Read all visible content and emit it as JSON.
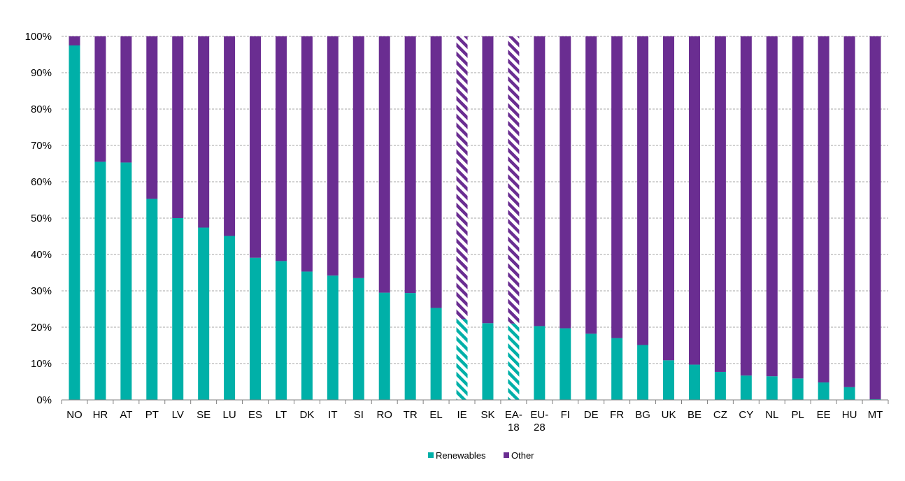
{
  "chart_data": {
    "type": "bar",
    "stacked": true,
    "title": "",
    "xlabel": "",
    "ylabel": "",
    "ylim": [
      0,
      100
    ],
    "yticks": [
      "0%",
      "10%",
      "20%",
      "30%",
      "40%",
      "50%",
      "60%",
      "70%",
      "80%",
      "90%",
      "100%"
    ],
    "grid": true,
    "legend_position": "bottom",
    "categories": [
      "NO",
      "HR",
      "AT",
      "PT",
      "LV",
      "SE",
      "LU",
      "ES",
      "LT",
      "DK",
      "IT",
      "SI",
      "RO",
      "TR",
      "EL",
      "IE",
      "SK",
      "EA-18",
      "EU-28",
      "FI",
      "DE",
      "FR",
      "BG",
      "UK",
      "BE",
      "CZ",
      "CY",
      "NL",
      "PL",
      "EE",
      "HU",
      "MT"
    ],
    "category_labels": [
      [
        "NO"
      ],
      [
        "HR"
      ],
      [
        "AT"
      ],
      [
        "PT"
      ],
      [
        "LV"
      ],
      [
        "SE"
      ],
      [
        "LU"
      ],
      [
        "ES"
      ],
      [
        "LT"
      ],
      [
        "DK"
      ],
      [
        "IT"
      ],
      [
        "SI"
      ],
      [
        "RO"
      ],
      [
        "TR"
      ],
      [
        "EL"
      ],
      [
        "IE"
      ],
      [
        "SK"
      ],
      [
        "EA-",
        "18"
      ],
      [
        "EU-",
        "28"
      ],
      [
        "FI"
      ],
      [
        "DE"
      ],
      [
        "FR"
      ],
      [
        "BG"
      ],
      [
        "UK"
      ],
      [
        "BE"
      ],
      [
        "CZ"
      ],
      [
        "CY"
      ],
      [
        "NL"
      ],
      [
        "PL"
      ],
      [
        "EE"
      ],
      [
        "HU"
      ],
      [
        "MT"
      ]
    ],
    "hatched_categories": [
      "IE",
      "EA-18"
    ],
    "series": [
      {
        "name": "Renewables",
        "color": "#00b0a8",
        "values": [
          97.5,
          65.5,
          65.3,
          55.3,
          50,
          47.4,
          45.1,
          39.1,
          38.2,
          35.3,
          34.2,
          33.5,
          29.5,
          29.4,
          25.3,
          22.2,
          21.1,
          21,
          20.3,
          19.7,
          18.2,
          17,
          15.1,
          10.9,
          9.7,
          7.7,
          6.7,
          6.5,
          5.9,
          4.8,
          3.5,
          0.2
        ]
      },
      {
        "name": "Other",
        "color": "#6a2d91",
        "values": [
          2.5,
          34.5,
          34.7,
          44.7,
          50,
          52.6,
          54.9,
          60.9,
          61.8,
          64.7,
          65.8,
          66.5,
          70.5,
          70.6,
          74.7,
          77.8,
          78.9,
          79,
          79.7,
          80.3,
          81.8,
          83,
          84.9,
          89.1,
          90.3,
          92.3,
          93.3,
          93.5,
          94.1,
          95.2,
          96.5,
          99.8
        ]
      }
    ]
  }
}
